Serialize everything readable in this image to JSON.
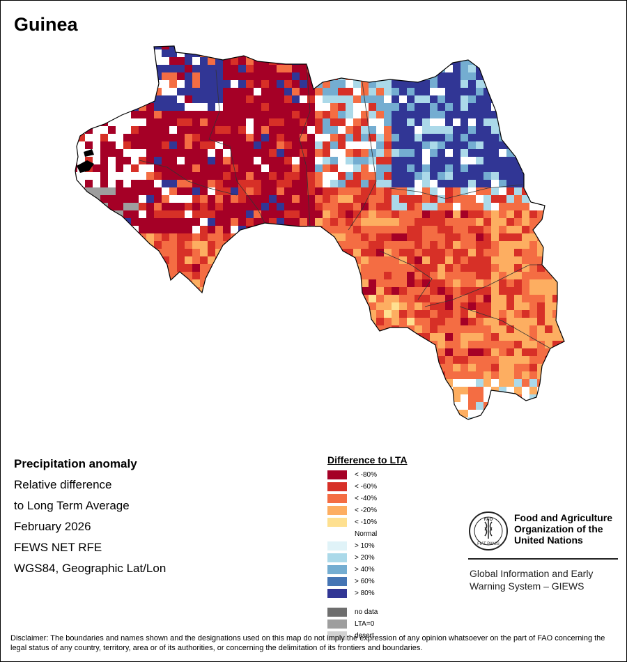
{
  "title": "Guinea",
  "info": {
    "heading": "Precipitation anomaly",
    "line1": "Relative difference",
    "line2": "to Long Term Average",
    "period": "February 2026",
    "source": "FEWS NET RFE",
    "projection": "WGS84, Geographic Lat/Lon"
  },
  "legend": {
    "title": "Difference to LTA",
    "items": [
      {
        "label": "< -80%",
        "color": "#a50026"
      },
      {
        "label": "< -60%",
        "color": "#d73027"
      },
      {
        "label": "< -40%",
        "color": "#f46d43"
      },
      {
        "label": "< -20%",
        "color": "#fdae61"
      },
      {
        "label": "< -10%",
        "color": "#fee090"
      },
      {
        "label": "Normal",
        "color": "#ffffff"
      },
      {
        "label": "> 10%",
        "color": "#e0f3f8"
      },
      {
        "label": "> 20%",
        "color": "#abd9e9"
      },
      {
        "label": "> 40%",
        "color": "#74add1"
      },
      {
        "label": "> 60%",
        "color": "#4575b4"
      },
      {
        "label": "> 80%",
        "color": "#313695"
      }
    ],
    "extra": [
      {
        "label": "no data",
        "color": "#6e6e6e"
      },
      {
        "label": "LTA=0",
        "color": "#9e9e9e"
      },
      {
        "label": "desert",
        "color": "#d2d2d2"
      }
    ]
  },
  "fao": {
    "name_line1": "Food and Agriculture",
    "name_line2": "Organization of the",
    "name_line3": "United Nations",
    "emblem_text": "FAO",
    "emblem_motto_left": "FIAT",
    "emblem_motto_right": "PANIS",
    "giews_line1": "Global Information and Early",
    "giews_line2": "Warning System – GIEWS"
  },
  "disclaimer": "Disclaimer: The boundaries and names shown and the designations used on this map do not imply the expression of any opinion whatsoever on the part of FAO concerning the legal status of any country, territory, area or of its authorities, or concerning the delimitation of its frontiers and boundaries.",
  "map_regions": [
    {
      "name": "northwest-blue",
      "class": "> 80%",
      "color": "#313695"
    },
    {
      "name": "north-central-red",
      "class": "< -80%",
      "color": "#a50026"
    },
    {
      "name": "west-red",
      "class": "< -80%",
      "color": "#a50026"
    },
    {
      "name": "northeast-blue",
      "class": "> 80%",
      "color": "#313695"
    },
    {
      "name": "east-band",
      "class": "> 60%",
      "color": "#4575b4"
    },
    {
      "name": "southeast-orange",
      "class": "< -40%",
      "color": "#f46d43"
    },
    {
      "name": "southeast-red",
      "class": "< -60%",
      "color": "#d73027"
    },
    {
      "name": "south-light-orange",
      "class": "< -20%",
      "color": "#fdae61"
    },
    {
      "name": "southwest-grey",
      "class": "LTA=0",
      "color": "#9e9e9e"
    },
    {
      "name": "south-tip-blue",
      "class": "> 20%",
      "color": "#abd9e9"
    }
  ]
}
